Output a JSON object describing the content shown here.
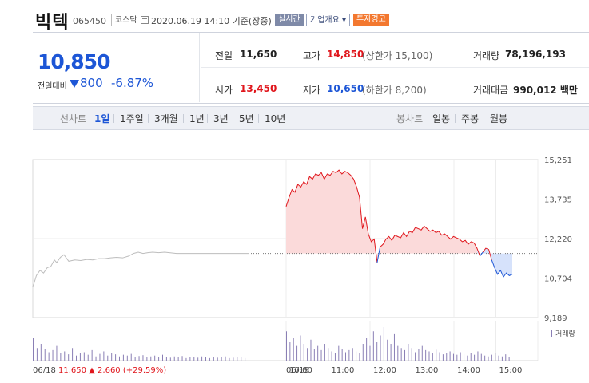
{
  "stock": {
    "name": "빅텍",
    "code": "065450",
    "market": "코스닥",
    "datetime": "2020.06.19 14:10 기준(장중)",
    "realtime_label": "실시간",
    "company_label": "기업개요",
    "company_arrow": "▾",
    "warning_label": "투자경고"
  },
  "price": {
    "current": "10,850",
    "change_label": "전일대비",
    "change_amount": "800",
    "change_pct": "-6.87%"
  },
  "summary": {
    "prev_label": "전일",
    "prev_value": "11,650",
    "high_label": "고가",
    "high_value": "14,850",
    "high_sub": "(상한가 15,100)",
    "volume_label": "거래량",
    "volume_value": "78,196,193",
    "open_label": "시가",
    "open_value": "13,450",
    "low_label": "저가",
    "low_value": "10,650",
    "low_sub": "(하한가 8,200)",
    "amount_label": "거래대금",
    "amount_value": "990,012 백만"
  },
  "tabs": {
    "line_label": "선차트",
    "line_items": [
      "1일",
      "1주일",
      "3개월",
      "1년",
      "3년",
      "5년",
      "10년"
    ],
    "active": "1일",
    "candle_label": "봉차트",
    "candle_items": [
      "일봉",
      "주봉",
      "월봉"
    ]
  },
  "colors": {
    "up": "#e0161c",
    "down": "#1d56d6",
    "prev_line": "#bdbdbd",
    "up_fill": "#fbdada",
    "down_fill": "#d6e2fb",
    "volume": "#8a7fb5"
  },
  "chart_data": {
    "type": "line",
    "y_ticks": [
      "15,251",
      "13,735",
      "12,220",
      "10,704",
      "9,189"
    ],
    "ylim": [
      9189,
      15251
    ],
    "base_price": 11650,
    "grid": true,
    "volume_label": "거래량",
    "prev_day": {
      "date_label": "06/18",
      "close": "11,650",
      "change_arrow": "▲",
      "change": "2,660",
      "change_pct": "(+29.59%)",
      "points": [
        [
          0,
          10350
        ],
        [
          3,
          10800
        ],
        [
          6,
          11000
        ],
        [
          9,
          10900
        ],
        [
          12,
          11100
        ],
        [
          15,
          11150
        ],
        [
          18,
          11400
        ],
        [
          20,
          11300
        ],
        [
          23,
          11500
        ],
        [
          26,
          11600
        ],
        [
          30,
          11350
        ],
        [
          35,
          11400
        ],
        [
          40,
          11380
        ],
        [
          45,
          11420
        ],
        [
          50,
          11400
        ],
        [
          55,
          11450
        ],
        [
          60,
          11450
        ],
        [
          65,
          11480
        ],
        [
          70,
          11500
        ],
        [
          75,
          11480
        ],
        [
          80,
          11550
        ],
        [
          84,
          11650
        ],
        [
          88,
          11700
        ],
        [
          92,
          11650
        ],
        [
          96,
          11680
        ],
        [
          100,
          11700
        ],
        [
          105,
          11680
        ],
        [
          110,
          11700
        ],
        [
          120,
          11650
        ],
        [
          130,
          11650
        ],
        [
          140,
          11650
        ],
        [
          150,
          11650
        ],
        [
          160,
          11650
        ],
        [
          170,
          11650
        ],
        [
          180,
          11650
        ]
      ]
    },
    "today": {
      "date_label": "06/19",
      "x_ticks": [
        "10:00",
        "11:00",
        "12:00",
        "13:00",
        "14:00",
        "15:00"
      ],
      "points": [
        [
          0,
          13450
        ],
        [
          2,
          13800
        ],
        [
          4,
          14100
        ],
        [
          6,
          14000
        ],
        [
          8,
          14300
        ],
        [
          10,
          14200
        ],
        [
          12,
          14400
        ],
        [
          14,
          14300
        ],
        [
          16,
          14600
        ],
        [
          18,
          14500
        ],
        [
          20,
          14700
        ],
        [
          22,
          14650
        ],
        [
          24,
          14750
        ],
        [
          26,
          14500
        ],
        [
          28,
          14700
        ],
        [
          30,
          14650
        ],
        [
          32,
          14800
        ],
        [
          34,
          14750
        ],
        [
          36,
          14850
        ],
        [
          38,
          14700
        ],
        [
          40,
          14800
        ],
        [
          42,
          14750
        ],
        [
          44,
          14650
        ],
        [
          46,
          14500
        ],
        [
          48,
          14200
        ],
        [
          50,
          13800
        ],
        [
          52,
          12600
        ],
        [
          54,
          13050
        ],
        [
          56,
          12400
        ],
        [
          58,
          12100
        ],
        [
          60,
          12200
        ],
        [
          62,
          11300
        ],
        [
          64,
          11900
        ],
        [
          66,
          12000
        ],
        [
          68,
          12200
        ],
        [
          70,
          12300
        ],
        [
          72,
          12150
        ],
        [
          74,
          12350
        ],
        [
          76,
          12300
        ],
        [
          78,
          12250
        ],
        [
          80,
          12450
        ],
        [
          82,
          12300
        ],
        [
          84,
          12500
        ],
        [
          86,
          12450
        ],
        [
          88,
          12650
        ],
        [
          90,
          12600
        ],
        [
          92,
          12550
        ],
        [
          94,
          12700
        ],
        [
          96,
          12600
        ],
        [
          98,
          12500
        ],
        [
          100,
          12550
        ],
        [
          102,
          12450
        ],
        [
          104,
          12500
        ],
        [
          106,
          12350
        ],
        [
          108,
          12400
        ],
        [
          110,
          12300
        ],
        [
          112,
          12200
        ],
        [
          114,
          12300
        ],
        [
          116,
          12250
        ],
        [
          118,
          12200
        ],
        [
          120,
          12100
        ],
        [
          122,
          12150
        ],
        [
          124,
          12000
        ],
        [
          126,
          12100
        ],
        [
          128,
          12050
        ],
        [
          130,
          11850
        ],
        [
          132,
          11550
        ],
        [
          134,
          11700
        ],
        [
          136,
          11850
        ],
        [
          138,
          11800
        ],
        [
          140,
          11400
        ],
        [
          142,
          11100
        ],
        [
          144,
          10850
        ],
        [
          146,
          11000
        ],
        [
          148,
          10750
        ],
        [
          150,
          10900
        ],
        [
          152,
          10800
        ],
        [
          154,
          10850
        ]
      ]
    },
    "volume_prev": [
      55,
      30,
      40,
      28,
      20,
      25,
      35,
      18,
      22,
      15,
      30,
      12,
      18,
      20,
      14,
      25,
      10,
      16,
      22,
      12,
      18,
      15,
      10,
      14,
      12,
      16,
      9,
      11,
      13,
      8,
      10,
      12,
      9,
      14,
      8,
      7,
      10,
      9,
      11,
      6,
      8,
      9,
      7,
      10,
      8,
      6,
      9,
      7,
      8,
      10,
      6,
      7,
      9,
      8,
      6
    ],
    "volume_today": [
      70,
      45,
      55,
      35,
      60,
      40,
      30,
      50,
      28,
      35,
      25,
      40,
      30,
      22,
      18,
      35,
      28,
      20,
      25,
      30,
      22,
      18,
      40,
      55,
      35,
      70,
      45,
      60,
      80,
      50,
      40,
      65,
      35,
      30,
      25,
      40,
      30,
      20,
      28,
      35,
      25,
      22,
      18,
      26,
      20,
      15,
      18,
      22,
      16,
      14,
      20,
      15,
      12,
      18,
      14,
      22,
      16,
      12,
      10,
      14,
      18,
      12,
      10,
      15,
      8
    ]
  }
}
